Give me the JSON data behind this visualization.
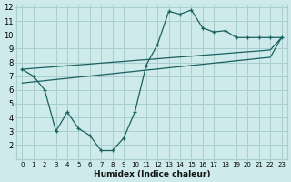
{
  "xlabel": "Humidex (Indice chaleur)",
  "bg_color": "#ceeaea",
  "grid_color": "#a8cece",
  "line_color": "#1a6060",
  "xlim": [
    0,
    23
  ],
  "ylim": [
    1,
    12
  ],
  "xticks": [
    0,
    1,
    2,
    3,
    4,
    5,
    6,
    7,
    8,
    9,
    10,
    11,
    12,
    13,
    14,
    15,
    16,
    17,
    18,
    19,
    20,
    21,
    22,
    23
  ],
  "yticks": [
    2,
    3,
    4,
    5,
    6,
    7,
    8,
    9,
    10,
    11,
    12
  ],
  "line1_x": [
    0,
    1,
    2,
    3,
    4,
    5,
    6,
    7,
    8,
    9,
    10,
    11,
    12,
    13,
    14,
    15,
    16,
    17,
    18,
    19,
    20,
    21,
    22,
    23
  ],
  "line1_y": [
    7.5,
    7.0,
    6.0,
    3.0,
    4.4,
    3.2,
    2.7,
    1.6,
    1.6,
    2.5,
    4.4,
    7.8,
    9.3,
    11.7,
    11.5,
    11.8,
    10.5,
    10.2,
    10.3,
    9.8,
    9.8,
    9.8,
    9.8,
    9.8
  ],
  "line2_x": [
    0,
    1,
    2,
    3,
    4,
    5,
    6,
    7,
    8,
    9,
    10,
    11,
    12,
    13,
    14,
    15,
    16,
    17,
    18,
    19,
    20,
    21,
    22,
    23
  ],
  "line2_y": [
    7.5,
    7.57,
    7.63,
    7.69,
    7.76,
    7.82,
    7.88,
    7.95,
    8.01,
    8.07,
    8.14,
    8.2,
    8.26,
    8.33,
    8.39,
    8.45,
    8.52,
    8.58,
    8.64,
    8.71,
    8.77,
    8.83,
    8.9,
    9.8
  ],
  "line3_x": [
    0,
    1,
    2,
    3,
    4,
    5,
    6,
    7,
    8,
    9,
    10,
    11,
    12,
    13,
    14,
    15,
    16,
    17,
    18,
    19,
    20,
    21,
    22,
    23
  ],
  "line3_y": [
    6.5,
    6.59,
    6.67,
    6.76,
    6.84,
    6.93,
    7.01,
    7.1,
    7.18,
    7.27,
    7.35,
    7.44,
    7.52,
    7.61,
    7.69,
    7.78,
    7.86,
    7.95,
    8.03,
    8.12,
    8.2,
    8.29,
    8.37,
    9.8
  ]
}
